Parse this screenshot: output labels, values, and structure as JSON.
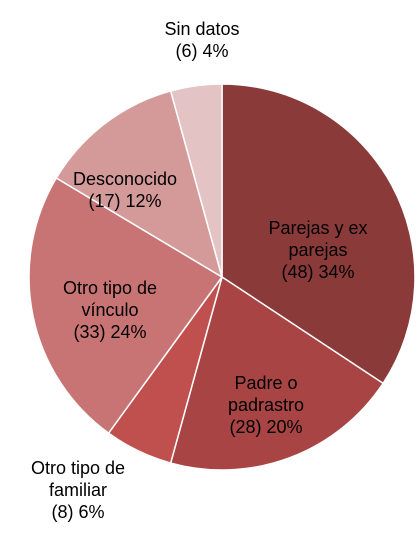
{
  "chart_data": {
    "type": "pie",
    "categories": [
      "Parejas y ex parejas",
      "Padre o padrastro",
      "Otro tipo de familiar",
      "Otro tipo de vínculo",
      "Desconocido",
      "Sin datos"
    ],
    "values": [
      48,
      28,
      8,
      33,
      17,
      6
    ],
    "value_labels": [
      "(48) 34%",
      "(28) 20%",
      "(8) 6%",
      "(33) 24%",
      "(17) 12%",
      "(6) 4%"
    ],
    "colors": [
      "#8b3a3a",
      "#a84444",
      "#c0504d",
      "#c87474",
      "#d49a9a",
      "#e3c3c3"
    ]
  }
}
